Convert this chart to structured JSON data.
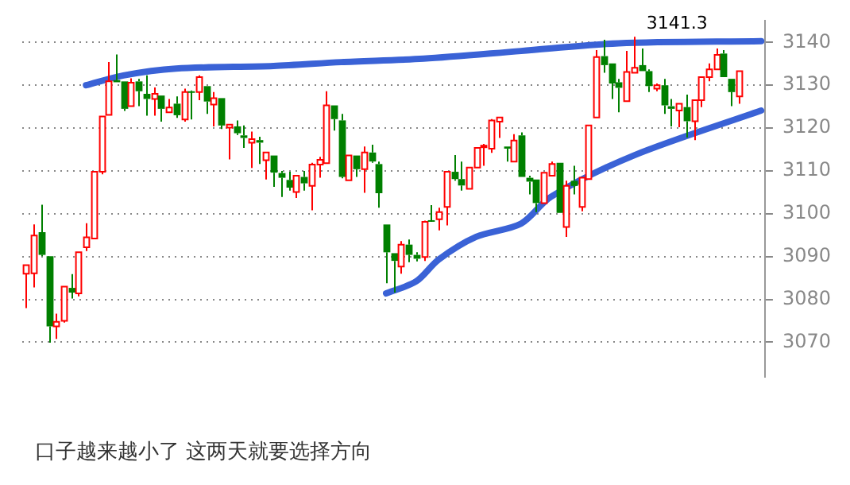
{
  "chart_data": {
    "type": "candlestick",
    "ylim": [
      3062,
      3145
    ],
    "yticks": [
      3070,
      3080,
      3090,
      3100,
      3110,
      3120,
      3130,
      3140
    ],
    "grid": "y",
    "categories": [
      null,
      null,
      null,
      null,
      null,
      null,
      null,
      null,
      null,
      null,
      null,
      null,
      null,
      null,
      null,
      null,
      null,
      null,
      null,
      null,
      null,
      null,
      null,
      null,
      null,
      null,
      null,
      null,
      null,
      null,
      null,
      null,
      null,
      null,
      null,
      null,
      null,
      null,
      null,
      null,
      null,
      null,
      null,
      null,
      null,
      null,
      null,
      null,
      null,
      null,
      null,
      null,
      null,
      null,
      null,
      null,
      null,
      null,
      null,
      null,
      null,
      null,
      null,
      null,
      null,
      null,
      null,
      null,
      null,
      null,
      null,
      null,
      null,
      null,
      null,
      null,
      null,
      null,
      null,
      null,
      null,
      null,
      null,
      null,
      null,
      null,
      null,
      null,
      null,
      null,
      null,
      null,
      null,
      null,
      null,
      null,
      null,
      null,
      null
    ],
    "ohlc": [
      [
        3086,
        3088,
        3078,
        3088
      ],
      [
        3086.1,
        3097.5,
        3082.8,
        3094.9
      ],
      [
        3095.7,
        3102.1,
        3090.1,
        3090.4
      ],
      [
        3090.1,
        3090.1,
        3069.9,
        3073.7
      ],
      [
        3073.7,
        3076.7,
        3070.8,
        3074.8
      ],
      [
        3075,
        3083,
        3074.6,
        3083
      ],
      [
        3082.7,
        3085.9,
        3080.2,
        3081.6
      ],
      [
        3081.4,
        3091,
        3080.7,
        3091
      ],
      [
        3092.2,
        3097.8,
        3091.3,
        3094.5
      ],
      [
        3094.2,
        3109.8,
        3094.2,
        3109.8
      ],
      [
        3109.8,
        3122.7,
        3109.2,
        3122.7
      ],
      [
        3123.1,
        3135.4,
        3123.1,
        3130.9
      ],
      [
        3131.2,
        3137.2,
        3130.7,
        3130.7
      ],
      [
        3130.9,
        3130.9,
        3124,
        3124.5
      ],
      [
        3125.1,
        3131.6,
        3125.1,
        3130.6
      ],
      [
        3130.9,
        3131.5,
        3125.1,
        3128.6
      ],
      [
        3128,
        3132.3,
        3122.9,
        3126.8
      ],
      [
        3126.8,
        3129.5,
        3122.9,
        3128
      ],
      [
        3127.6,
        3127.6,
        3121.5,
        3124.5
      ],
      [
        3123.7,
        3126.8,
        3123.7,
        3124.8
      ],
      [
        3125.7,
        3127.4,
        3122.4,
        3123
      ],
      [
        3122,
        3129.2,
        3121.5,
        3128.4
      ],
      [
        3128.6,
        3128.8,
        3122,
        3128.4
      ],
      [
        3128.4,
        3132.3,
        3126.5,
        3131.9
      ],
      [
        3129.8,
        3129.8,
        3123.3,
        3126.2
      ],
      [
        3125.5,
        3128.4,
        3120.4,
        3127
      ],
      [
        3127,
        3127,
        3119.8,
        3120.6
      ],
      [
        3120.1,
        3120.8,
        3112.7,
        3120.8
      ],
      [
        3120.4,
        3121.8,
        3118.4,
        3118.8
      ],
      [
        3118.3,
        3120.6,
        3115.4,
        3117.7
      ],
      [
        3116.6,
        3119.2,
        3110.7,
        3117.4
      ],
      [
        3117.2,
        3118,
        3111.6,
        3116.6
      ],
      [
        3112.5,
        3114.3,
        3108,
        3114.3
      ],
      [
        3113.6,
        3113.6,
        3106.3,
        3109.6
      ],
      [
        3109.5,
        3110,
        3103.9,
        3108.4
      ],
      [
        3107.9,
        3109.8,
        3105.4,
        3106.1
      ],
      [
        3105.1,
        3108.9,
        3103.7,
        3108.9
      ],
      [
        3108.6,
        3110,
        3105.4,
        3107.1
      ],
      [
        3106.5,
        3111.9,
        3100.8,
        3111.5
      ],
      [
        3111.5,
        3113.3,
        3108.4,
        3112.6
      ],
      [
        3111.8,
        3128.6,
        3111.8,
        3125.3
      ],
      [
        3125.3,
        3125.3,
        3119.4,
        3122.1
      ],
      [
        3121.8,
        3123.3,
        3108.3,
        3108.6
      ],
      [
        3107.8,
        3113.6,
        3107.8,
        3113.6
      ],
      [
        3113.6,
        3113.6,
        3108.6,
        3110.4
      ],
      [
        3110.4,
        3115.7,
        3104.9,
        3114.3
      ],
      [
        3114.3,
        3116.1,
        3111.9,
        3112.2
      ],
      [
        3111.6,
        3112.2,
        3101.4,
        3104.8
      ],
      [
        3097.5,
        3097.5,
        3083.8,
        3091
      ],
      [
        3090.8,
        3090.8,
        3081.6,
        3089
      ],
      [
        3087.7,
        3093.6,
        3086,
        3092.8
      ],
      [
        3092.8,
        3094,
        3088.7,
        3090.4
      ],
      [
        3090.4,
        3091,
        3088.9,
        3089.5
      ],
      [
        3089.9,
        3098.4,
        3089,
        3098.1
      ],
      [
        3098.5,
        3102,
        3098.1,
        3098.4
      ],
      [
        3098.7,
        3101.4,
        3096.1,
        3100.4
      ],
      [
        3101.6,
        3109.8,
        3097.3,
        3109.8
      ],
      [
        3109.8,
        3113.7,
        3107.7,
        3108.1
      ],
      [
        3108.1,
        3112.2,
        3105.4,
        3106.6
      ],
      [
        3105.8,
        3110.8,
        3105.8,
        3110.8
      ],
      [
        3110.8,
        3115.4,
        3110.8,
        3115.4
      ],
      [
        3115.7,
        3116.3,
        3111.2,
        3115.9
      ],
      [
        3115.2,
        3122.1,
        3114.2,
        3121.8
      ],
      [
        3121.5,
        3122.5,
        3117.7,
        3122.5
      ],
      [
        3115.7,
        3115.7,
        3112.2,
        3115.2
      ],
      [
        3112.2,
        3118.6,
        3112.2,
        3117.1
      ],
      [
        3118.3,
        3119,
        3108.6,
        3108.6
      ],
      [
        3108.4,
        3108.9,
        3104.5,
        3107.5
      ],
      [
        3108,
        3108,
        3100.4,
        3102.5
      ],
      [
        3102.5,
        3109.6,
        3102.5,
        3109.6
      ],
      [
        3108.9,
        3112.2,
        3108.9,
        3111.6
      ],
      [
        3111.9,
        3111.9,
        3100.2,
        3100.2
      ],
      [
        3096.9,
        3107.7,
        3094.6,
        3106.5
      ],
      [
        3107.7,
        3111.2,
        3104.5,
        3106.5
      ],
      [
        3101.6,
        3108.4,
        3100.6,
        3108.4
      ],
      [
        3108.1,
        3120.6,
        3108.1,
        3120.6
      ],
      [
        3122.5,
        3138.2,
        3122.5,
        3136.6
      ],
      [
        3136.8,
        3140.6,
        3132.9,
        3134.7
      ],
      [
        3135.1,
        3135.1,
        3126.8,
        3130.4
      ],
      [
        3130.7,
        3131.5,
        3123.7,
        3129.4
      ],
      [
        3126.3,
        3138,
        3126.3,
        3133.1
      ],
      [
        3132.9,
        3141.3,
        3132.9,
        3134.1
      ],
      [
        3134.7,
        3138.6,
        3133.3,
        3133.3
      ],
      [
        3133.3,
        3133.7,
        3128.4,
        3129.8
      ],
      [
        3129.2,
        3130.4,
        3128.6,
        3130
      ],
      [
        3130,
        3131.5,
        3123.3,
        3125.3
      ],
      [
        3125.1,
        3126.8,
        3120.4,
        3124.5
      ],
      [
        3124.1,
        3125.7,
        3120.2,
        3125.7
      ],
      [
        3124.9,
        3127.8,
        3117.8,
        3121.6
      ],
      [
        3121.6,
        3126.5,
        3117.2,
        3126.5
      ],
      [
        3126.5,
        3131.9,
        3124.9,
        3131.9
      ],
      [
        3131.9,
        3135.1,
        3130.9,
        3133.7
      ],
      [
        3133.7,
        3138.6,
        3133.7,
        3137.1
      ],
      [
        3137.4,
        3138.2,
        3131.9,
        3131.9
      ],
      [
        3131.5,
        3131.5,
        3125.1,
        3128.4
      ],
      [
        3127.4,
        3133.3,
        3125.7,
        3133.3
      ],
      null,
      null,
      null
    ],
    "series": [
      {
        "type": "line",
        "color": "#3a62d6",
        "values": [
          null,
          null,
          null,
          null,
          null,
          null,
          null,
          null,
          3130,
          null,
          null,
          null,
          null,
          3132.3,
          null,
          null,
          null,
          null,
          null,
          null,
          3133.9,
          null,
          null,
          null,
          null,
          null,
          null,
          null,
          null,
          null,
          null,
          null,
          null,
          3134.5,
          null,
          null,
          null,
          null,
          null,
          null,
          null,
          null,
          3135.4,
          null,
          null,
          null,
          null,
          null,
          null,
          null,
          null,
          null,
          null,
          3136.2,
          null,
          null,
          null,
          null,
          null,
          null,
          null,
          null,
          null,
          null,
          null,
          null,
          3138,
          null,
          null,
          null,
          null,
          null,
          null,
          null,
          null,
          null,
          null,
          null,
          null,
          3139.8,
          null,
          null,
          null,
          null,
          null,
          null,
          null,
          null,
          null,
          null,
          null,
          null,
          null,
          null,
          null,
          null,
          null,
          null,
          3140.3
        ]
      },
      {
        "type": "line",
        "color": "#3a62d6",
        "values": [
          null,
          null,
          null,
          null,
          null,
          null,
          null,
          null,
          null,
          null,
          null,
          null,
          null,
          null,
          null,
          null,
          null,
          null,
          null,
          null,
          null,
          null,
          null,
          null,
          null,
          null,
          null,
          null,
          null,
          null,
          null,
          null,
          null,
          null,
          null,
          null,
          null,
          null,
          null,
          null,
          null,
          null,
          null,
          null,
          null,
          null,
          null,
          null,
          3081.4,
          null,
          null,
          null,
          3084.2,
          null,
          null,
          3089.3,
          null,
          null,
          null,
          null,
          3094.6,
          null,
          null,
          null,
          null,
          null,
          3097.7,
          null,
          null,
          null,
          3104,
          null,
          null,
          null,
          null,
          null,
          null,
          null,
          null,
          null,
          null,
          3113.6,
          null,
          null,
          null,
          null,
          null,
          null,
          null,
          null,
          null,
          null,
          null,
          null,
          null,
          null,
          null,
          null,
          3124.1
        ]
      }
    ],
    "annotations": [
      {
        "text": "3141.3",
        "y": 3141.3
      },
      "口子越来越小了 这两天就要选择方向"
    ]
  }
}
